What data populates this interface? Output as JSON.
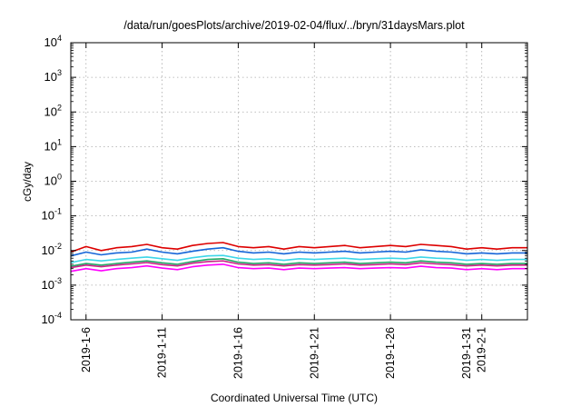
{
  "chart_data": {
    "type": "line",
    "title": "/data/run/goesPlots/archive/2019-02-04/flux/../bryn/31daysMars.plot",
    "xlabel": "Coordinated Universal Time (UTC)",
    "ylabel": "cGy/day",
    "y_scale": "log",
    "ylim": [
      0.0001,
      10000
    ],
    "xlim": [
      "2019-01-05",
      "2019-02-04"
    ],
    "grid": true,
    "x_ticks": [
      "2019-1-6",
      "2019-1-11",
      "2019-1-16",
      "2019-1-21",
      "2019-1-26",
      "2019-1-31",
      "2019-2-1"
    ],
    "y_ticks": [
      {
        "value": 0.0001,
        "base": "10",
        "exp": "-4"
      },
      {
        "value": 0.001,
        "base": "10",
        "exp": "-3"
      },
      {
        "value": 0.01,
        "base": "10",
        "exp": "-2"
      },
      {
        "value": 0.1,
        "base": "10",
        "exp": "-1"
      },
      {
        "value": 1,
        "base": "10",
        "exp": "0"
      },
      {
        "value": 10,
        "base": "10",
        "exp": "1"
      },
      {
        "value": 100,
        "base": "10",
        "exp": "2"
      },
      {
        "value": 1000,
        "base": "10",
        "exp": "3"
      },
      {
        "value": 10000,
        "base": "10",
        "exp": "4"
      }
    ],
    "series": [
      {
        "color": "#dd0000",
        "values": [
          0.009,
          0.013,
          0.01,
          0.012,
          0.013,
          0.015,
          0.012,
          0.011,
          0.014,
          0.016,
          0.017,
          0.013,
          0.012,
          0.013,
          0.011,
          0.013,
          0.012,
          0.013,
          0.014,
          0.012,
          0.013,
          0.014,
          0.013,
          0.015,
          0.014,
          0.013,
          0.011,
          0.012,
          0.011,
          0.012,
          0.012
        ]
      },
      {
        "color": "#1565d8",
        "values": [
          0.007,
          0.009,
          0.0075,
          0.0085,
          0.009,
          0.011,
          0.009,
          0.008,
          0.0095,
          0.011,
          0.012,
          0.0095,
          0.0085,
          0.009,
          0.008,
          0.009,
          0.0085,
          0.009,
          0.0095,
          0.0085,
          0.009,
          0.0095,
          0.009,
          0.0105,
          0.0095,
          0.009,
          0.008,
          0.0085,
          0.008,
          0.0085,
          0.0085
        ]
      },
      {
        "color": "#3dd6e8",
        "values": [
          0.0045,
          0.0055,
          0.005,
          0.0055,
          0.006,
          0.0065,
          0.0058,
          0.0052,
          0.0062,
          0.007,
          0.0072,
          0.006,
          0.0055,
          0.0058,
          0.0052,
          0.0058,
          0.0055,
          0.0058,
          0.006,
          0.0055,
          0.0058,
          0.006,
          0.0058,
          0.0065,
          0.006,
          0.0058,
          0.0052,
          0.0055,
          0.0052,
          0.0055,
          0.0055
        ]
      },
      {
        "color": "#22aa66",
        "values": [
          0.0035,
          0.0042,
          0.0038,
          0.0042,
          0.0046,
          0.005,
          0.0044,
          0.004,
          0.0048,
          0.0055,
          0.0058,
          0.0046,
          0.0042,
          0.0044,
          0.004,
          0.0044,
          0.0042,
          0.0044,
          0.0046,
          0.0042,
          0.0044,
          0.0046,
          0.0044,
          0.005,
          0.0046,
          0.0044,
          0.004,
          0.0042,
          0.004,
          0.0042,
          0.0042
        ]
      },
      {
        "color": "#ff00ff",
        "values": [
          0.0025,
          0.003,
          0.0026,
          0.003,
          0.0032,
          0.0036,
          0.0031,
          0.0028,
          0.0034,
          0.0038,
          0.004,
          0.0032,
          0.003,
          0.0031,
          0.0028,
          0.0031,
          0.003,
          0.0031,
          0.0032,
          0.003,
          0.0031,
          0.0032,
          0.0031,
          0.0035,
          0.0032,
          0.0031,
          0.0028,
          0.003,
          0.0028,
          0.003,
          0.003
        ]
      },
      {
        "color": "#cc2288",
        "values": [
          0.0032,
          0.0038,
          0.0034,
          0.0038,
          0.0041,
          0.0045,
          0.0039,
          0.0036,
          0.0043,
          0.0048,
          0.005,
          0.0041,
          0.0038,
          0.0039,
          0.0036,
          0.0039,
          0.0038,
          0.0039,
          0.0041,
          0.0038,
          0.0039,
          0.0041,
          0.0039,
          0.0044,
          0.0041,
          0.0039,
          0.0036,
          0.0038,
          0.0036,
          0.0038,
          0.0038
        ]
      }
    ]
  }
}
